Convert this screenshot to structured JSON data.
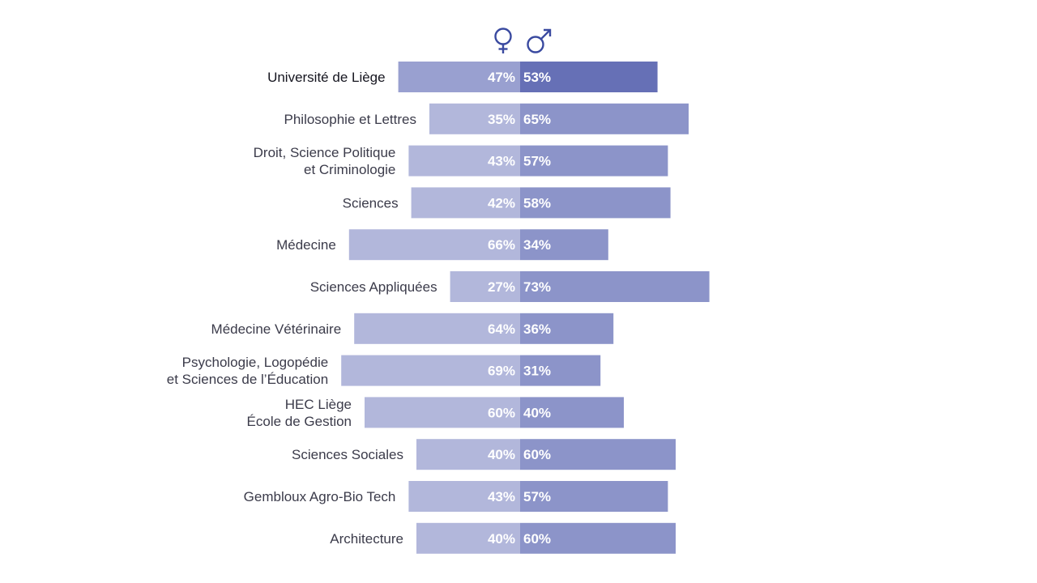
{
  "legend": {
    "female_icon": "female-symbol-icon",
    "male_icon": "male-symbol-icon",
    "icon_color": "#3a4aa0"
  },
  "colors": {
    "female_bar": "#b2b7db",
    "male_bar": "#8c94c9",
    "highlight_female_bar": "#99a0d0",
    "highlight_male_bar": "#6670b6"
  },
  "chart_data": {
    "type": "bar",
    "orientation": "diverging-horizontal",
    "categories": [
      [
        "Université de Liège"
      ],
      [
        "Philosophie et Lettres"
      ],
      [
        "Droit, Science Politique",
        "et Criminologie"
      ],
      [
        "Sciences"
      ],
      [
        "Médecine"
      ],
      [
        "Sciences Appliquées"
      ],
      [
        "Médecine Vétérinaire"
      ],
      [
        "Psychologie, Logopédie",
        "et Sciences de l’Éducation"
      ],
      [
        "HEC Liège",
        "École de Gestion"
      ],
      [
        "Sciences Sociales"
      ],
      [
        "Gembloux Agro-Bio Tech"
      ],
      [
        "Architecture"
      ]
    ],
    "highlighted_category_index": 0,
    "series": [
      {
        "symbol": "♀",
        "values": [
          47,
          35,
          43,
          42,
          66,
          27,
          64,
          69,
          60,
          40,
          43,
          40
        ],
        "labels": [
          "47%",
          "35%",
          "43%",
          "42%",
          "66%",
          "27%",
          "64%",
          "69%",
          "60%",
          "40%",
          "43%",
          "40%"
        ]
      },
      {
        "symbol": "♂",
        "values": [
          53,
          65,
          57,
          58,
          34,
          73,
          36,
          31,
          40,
          60,
          57,
          60
        ],
        "labels": [
          "53%",
          "65%",
          "57%",
          "58%",
          "34%",
          "73%",
          "36%",
          "31%",
          "40%",
          "60%",
          "57%",
          "60%"
        ]
      }
    ],
    "unit": "%",
    "xlim": [
      0,
      100
    ],
    "grid": false
  }
}
